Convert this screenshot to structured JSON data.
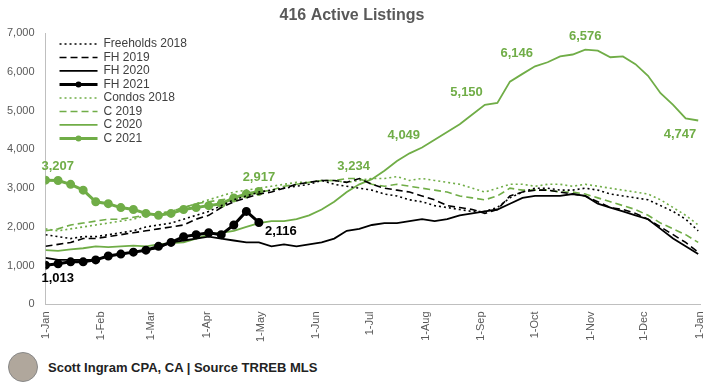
{
  "chart_data": {
    "type": "line",
    "title": "416 Active Listings",
    "caption": "Scott Ingram CPA, CA | Source TRREB MLS",
    "x": [
      0,
      7,
      14,
      21,
      28,
      35,
      42,
      49,
      56,
      63,
      70,
      77,
      84,
      91,
      98,
      105,
      112,
      119,
      126,
      133,
      140,
      147,
      154,
      161,
      168,
      175,
      182,
      189,
      196,
      203,
      210,
      217,
      224,
      231,
      238,
      245,
      252,
      259,
      266,
      273,
      280,
      287,
      294,
      301,
      308,
      315,
      322,
      329,
      336,
      343,
      350,
      357,
      364
    ],
    "xlim": [
      0,
      365
    ],
    "xticks": [
      {
        "value": 0,
        "label": "1-Jan"
      },
      {
        "value": 31,
        "label": "1-Feb"
      },
      {
        "value": 59,
        "label": "1-Mar"
      },
      {
        "value": 90,
        "label": "1-Apr"
      },
      {
        "value": 120,
        "label": "1-May"
      },
      {
        "value": 151,
        "label": "1-Jun"
      },
      {
        "value": 181,
        "label": "1-Jul"
      },
      {
        "value": 212,
        "label": "1-Aug"
      },
      {
        "value": 243,
        "label": "1-Sep"
      },
      {
        "value": 273,
        "label": "1-Oct"
      },
      {
        "value": 304,
        "label": "1-Nov"
      },
      {
        "value": 334,
        "label": "1-Dec"
      },
      {
        "value": 365,
        "label": "1-Jan"
      }
    ],
    "ylim": [
      0,
      7000
    ],
    "yticks": [
      0,
      {
        "value": 1000,
        "label": "1,000"
      },
      {
        "value": 2000,
        "label": "2,000"
      },
      {
        "value": 3000,
        "label": "3,000"
      },
      {
        "value": 4000,
        "label": "4,000"
      },
      {
        "value": 5000,
        "label": "5,000"
      },
      {
        "value": 6000,
        "label": "6,000"
      },
      {
        "value": 7000,
        "label": "7,000"
      }
    ],
    "grid": false,
    "legend": "upper left",
    "series": [
      {
        "name": "Freeholds 2018",
        "color": "#000000",
        "line_style": "dotted",
        "marker": "none",
        "values": [
          1800,
          1750,
          1700,
          1750,
          1750,
          1800,
          1850,
          1900,
          2000,
          2050,
          2100,
          2200,
          2300,
          2400,
          2550,
          2700,
          2800,
          2900,
          2950,
          3000,
          3050,
          3100,
          3200,
          3100,
          3050,
          3000,
          2950,
          2850,
          2800,
          2700,
          2650,
          2550,
          2500,
          2450,
          2400,
          2400,
          2500,
          2750,
          2900,
          3000,
          3000,
          2950,
          2950,
          3000,
          2950,
          2850,
          2800,
          2750,
          2700,
          2550,
          2400,
          2200,
          1900
        ]
      },
      {
        "name": "FH 2019",
        "color": "#000000",
        "line_style": "dashed",
        "marker": "none",
        "values": [
          1500,
          1550,
          1600,
          1700,
          1700,
          1750,
          1800,
          1850,
          1900,
          1950,
          2000,
          2050,
          2200,
          2300,
          2500,
          2650,
          2750,
          2850,
          2900,
          3000,
          3100,
          3150,
          3200,
          3200,
          3150,
          3250,
          3100,
          3000,
          2950,
          2900,
          2800,
          2700,
          2550,
          2500,
          2450,
          2350,
          2450,
          2800,
          2900,
          2950,
          2950,
          2900,
          2850,
          2800,
          2650,
          2500,
          2450,
          2350,
          2200,
          2000,
          1800,
          1600,
          1350
        ]
      },
      {
        "name": "FH 2020",
        "color": "#000000",
        "line_style": "solid",
        "marker": "none",
        "values": [
          1200,
          1150,
          1150,
          1150,
          1150,
          1250,
          1300,
          1350,
          1400,
          1450,
          1600,
          1650,
          1700,
          1750,
          1700,
          1650,
          1600,
          1600,
          1500,
          1550,
          1500,
          1550,
          1600,
          1700,
          1900,
          1950,
          2050,
          2100,
          2100,
          2150,
          2200,
          2150,
          2200,
          2300,
          2350,
          2400,
          2450,
          2600,
          2750,
          2800,
          2800,
          2800,
          2850,
          2800,
          2600,
          2500,
          2400,
          2300,
          2200,
          1950,
          1700,
          1500,
          1300
        ]
      },
      {
        "name": "FH 2021",
        "color": "#000000",
        "line_style": "solid",
        "marker": "circle",
        "values": [
          1013,
          1050,
          1100,
          1100,
          1150,
          1250,
          1300,
          1350,
          1400,
          1500,
          1600,
          1750,
          1800,
          1850,
          1800,
          2050,
          2400,
          2116,
          null,
          null,
          null,
          null,
          null,
          null,
          null,
          null,
          null,
          null,
          null,
          null,
          null,
          null,
          null,
          null,
          null,
          null,
          null,
          null,
          null,
          null,
          null,
          null,
          null,
          null,
          null,
          null,
          null,
          null,
          null,
          null,
          null,
          null,
          null
        ]
      },
      {
        "name": "Condos 2018",
        "color": "#70ad47",
        "line_style": "dotted",
        "marker": "none",
        "values": [
          1950,
          1900,
          1950,
          2000,
          2050,
          2100,
          2150,
          2200,
          2300,
          2350,
          2400,
          2500,
          2600,
          2700,
          2800,
          2900,
          2950,
          3000,
          3050,
          3100,
          3150,
          3150,
          3200,
          3200,
          3150,
          3200,
          3250,
          3250,
          3300,
          3200,
          3250,
          3200,
          3150,
          3100,
          3000,
          2900,
          3000,
          3100,
          3100,
          3050,
          3100,
          3100,
          3050,
          3100,
          3050,
          3000,
          2950,
          2900,
          2850,
          2700,
          2500,
          2300,
          2050
        ]
      },
      {
        "name": "C 2019",
        "color": "#70ad47",
        "line_style": "dashed",
        "marker": "none",
        "values": [
          1900,
          1950,
          2050,
          2100,
          2150,
          2200,
          2200,
          2250,
          2300,
          2350,
          2400,
          2500,
          2600,
          2650,
          2700,
          2750,
          2800,
          2900,
          2950,
          3050,
          3100,
          3150,
          3200,
          3200,
          3250,
          3250,
          3100,
          3050,
          3100,
          3050,
          3000,
          2950,
          2900,
          2800,
          2750,
          2700,
          2800,
          3000,
          2950,
          2950,
          2950,
          2900,
          2900,
          2850,
          2750,
          2650,
          2550,
          2450,
          2300,
          2100,
          1950,
          1800,
          1600
        ]
      },
      {
        "name": "C 2020",
        "color": "#70ad47",
        "line_style": "solid",
        "marker": "none",
        "values": [
          1400,
          1380,
          1420,
          1450,
          1500,
          1480,
          1500,
          1520,
          1500,
          1550,
          1580,
          1600,
          1700,
          1800,
          1850,
          1900,
          2000,
          2100,
          2150,
          2150,
          2200,
          2300,
          2450,
          2650,
          2900,
          3100,
          3234,
          3450,
          3700,
          3900,
          4049,
          4250,
          4450,
          4650,
          4900,
          5150,
          5200,
          5750,
          5950,
          6146,
          6250,
          6400,
          6450,
          6576,
          6550,
          6380,
          6400,
          6200,
          5900,
          5450,
          5150,
          4800,
          4747
        ]
      },
      {
        "name": "C 2021",
        "color": "#70ad47",
        "line_style": "solid",
        "marker": "circle",
        "values": [
          3207,
          3200,
          3100,
          2950,
          2650,
          2600,
          2500,
          2450,
          2350,
          2300,
          2350,
          2450,
          2500,
          2550,
          2600,
          2750,
          2850,
          2917,
          null,
          null,
          null,
          null,
          null,
          null,
          null,
          null,
          null,
          null,
          null,
          null,
          null,
          null,
          null,
          null,
          null,
          null,
          null,
          null,
          null,
          null,
          null,
          null,
          null,
          null,
          null,
          null,
          null,
          null,
          null,
          null,
          null,
          null,
          null
        ]
      }
    ],
    "annotations": [
      {
        "text": "3,207",
        "x": 0,
        "y": 3207,
        "color": "#70ad47"
      },
      {
        "text": "2,917",
        "x": 119,
        "y": 2917,
        "color": "#70ad47"
      },
      {
        "text": "1,013",
        "x": 0,
        "y": 1013,
        "color": "#000000"
      },
      {
        "text": "2,116",
        "x": 119,
        "y": 2116,
        "color": "#000000"
      },
      {
        "text": "3,234",
        "x": 182,
        "y": 3234,
        "color": "#70ad47"
      },
      {
        "text": "4,049",
        "x": 210,
        "y": 4049,
        "color": "#70ad47"
      },
      {
        "text": "5,150",
        "x": 245,
        "y": 5150,
        "color": "#70ad47"
      },
      {
        "text": "6,146",
        "x": 273,
        "y": 6146,
        "color": "#70ad47"
      },
      {
        "text": "6,576",
        "x": 301,
        "y": 6576,
        "color": "#70ad47"
      },
      {
        "text": "4,747",
        "x": 364,
        "y": 4747,
        "color": "#70ad47"
      }
    ]
  }
}
